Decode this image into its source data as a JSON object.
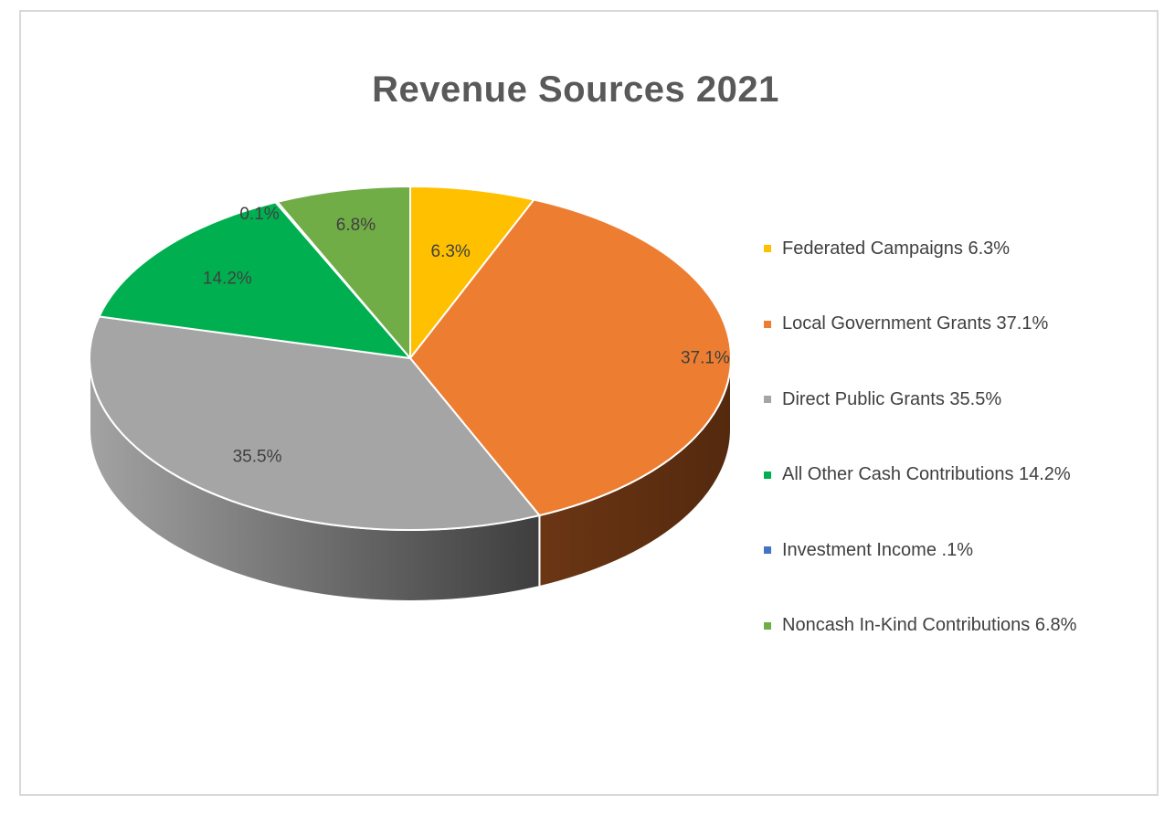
{
  "chart_data": {
    "type": "pie",
    "title": "Revenue Sources 2021",
    "style": "3d",
    "legend_position": "right",
    "slices": [
      {
        "name": "Federated Campaigns",
        "value": 6.3,
        "label": "6.3%",
        "legend": "Federated Campaigns 6.3%",
        "color": "#FFC000"
      },
      {
        "name": "Local Government Grants",
        "value": 37.1,
        "label": "37.1%",
        "legend": "Local Government Grants 37.1%",
        "color": "#ED7D31"
      },
      {
        "name": "Direct Public Grants",
        "value": 35.5,
        "label": "35.5%",
        "legend": "Direct Public Grants 35.5%",
        "color": "#A5A5A5"
      },
      {
        "name": "All Other Cash Contributions",
        "value": 14.2,
        "label": "14.2%",
        "legend": "All Other Cash Contributions 14.2%",
        "color": "#00B050"
      },
      {
        "name": "Investment Income",
        "value": 0.1,
        "label": "0.1%",
        "legend": "Investment Income .1%",
        "color": "#4472C4"
      },
      {
        "name": "Noncash In-Kind Contributions",
        "value": 6.8,
        "label": "6.8%",
        "legend": "Noncash In-Kind Contributions 6.8%",
        "color": "#70AD47"
      }
    ]
  }
}
